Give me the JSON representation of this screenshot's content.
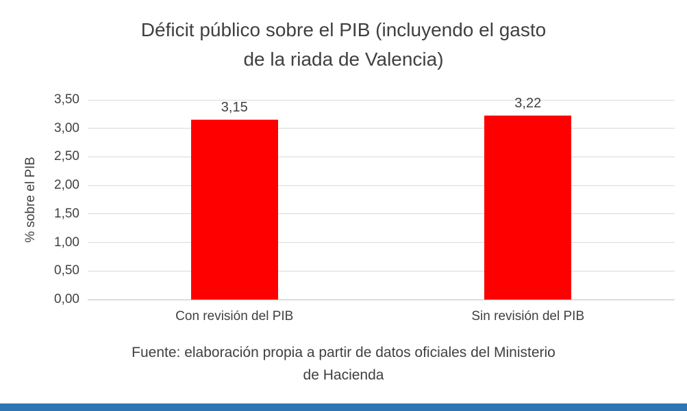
{
  "title": {
    "line1": "Déficit público sobre el PIB (incluyendo el gasto",
    "line2": "de la riada de Valencia)"
  },
  "chart_data": {
    "type": "bar",
    "title": "Déficit público sobre el PIB (incluyendo el gasto de la riada de Valencia)",
    "categories": [
      "Con revisión del PIB",
      "Sin revisión del PIB"
    ],
    "values": [
      3.15,
      3.22
    ],
    "value_labels": [
      "3,15",
      "3,22"
    ],
    "xlabel": "",
    "ylabel": "% sobre el PIB",
    "ylim": [
      0,
      3.5
    ],
    "ytick_step": 0.5,
    "ytick_labels": [
      "0,00",
      "0,50",
      "1,00",
      "1,50",
      "2,00",
      "2,50",
      "3,00",
      "3,50"
    ],
    "grid": true,
    "legend_position": "none",
    "bar_color": "#ff0000"
  },
  "caption": {
    "line1": "Fuente: elaboración propia a partir de datos oficiales del Ministerio",
    "line2": "de Hacienda"
  },
  "colors": {
    "bar": "#ff0000",
    "text": "#404040",
    "gridline": "#d9d9d9",
    "bottom_strip": "#2e75b6"
  }
}
